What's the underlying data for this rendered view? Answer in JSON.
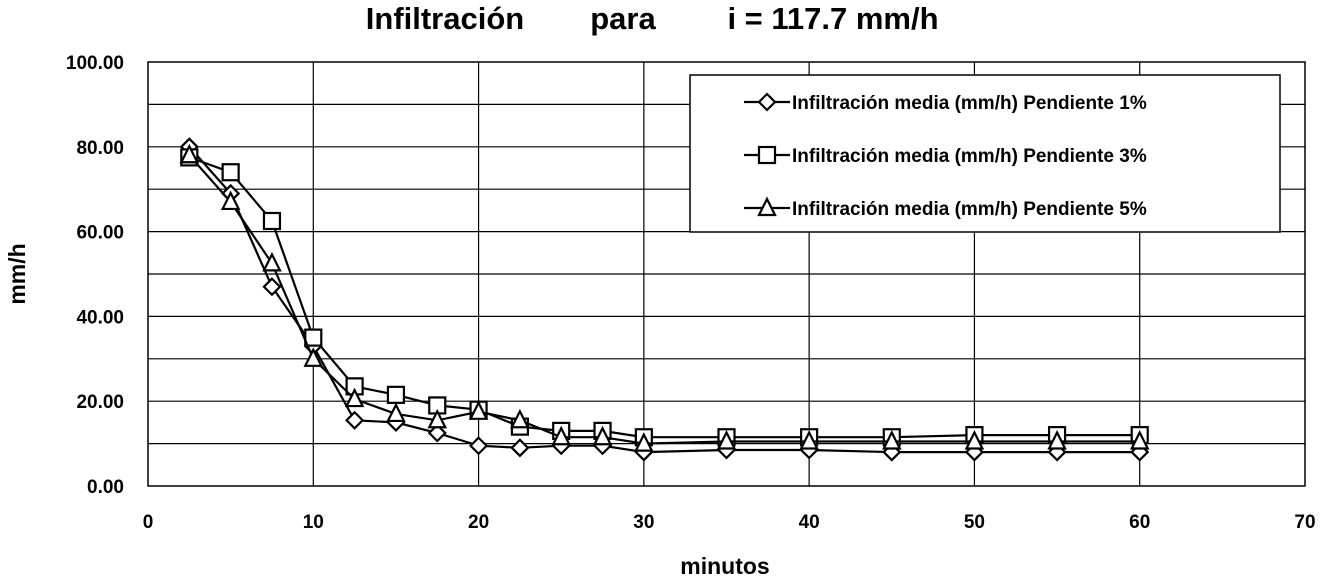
{
  "chart_data": {
    "type": "line",
    "title": "Infiltración para i = 117.7 mm/h",
    "title_parts": [
      "Infiltración",
      "para",
      "i = 117.7 mm/h"
    ],
    "xlabel": "minutos",
    "ylabel": "mm/h",
    "xlim": [
      0,
      70
    ],
    "ylim": [
      0,
      100
    ],
    "x_ticks": [
      0,
      10,
      20,
      30,
      40,
      50,
      60,
      70
    ],
    "x_tick_labels": [
      "0",
      "10",
      "20",
      "30",
      "40",
      "50",
      "60",
      "70"
    ],
    "y_ticks": [
      0,
      20,
      40,
      60,
      80,
      100
    ],
    "y_tick_labels": [
      "0.00",
      "20.00",
      "40.00",
      "60.00",
      "80.00",
      "100.00"
    ],
    "grid": true,
    "legend_position": "top-right",
    "series": [
      {
        "name": "Infiltración media (mm/h) Pendiente 1%",
        "marker": "diamond",
        "x": [
          2.5,
          5,
          7.5,
          10,
          12.5,
          15,
          17.5,
          20,
          22.5,
          25,
          27.5,
          30,
          35,
          40,
          45,
          50,
          55,
          60
        ],
        "y": [
          80,
          69,
          47,
          33,
          15.5,
          15,
          12.5,
          9.5,
          9,
          9.5,
          9.5,
          8,
          8.5,
          8.5,
          8,
          8,
          8,
          8
        ]
      },
      {
        "name": "Infiltración media (mm/h) Pendiente 3%",
        "marker": "square",
        "x": [
          2.5,
          5,
          7.5,
          10,
          12.5,
          15,
          17.5,
          20,
          22.5,
          25,
          27.5,
          30,
          35,
          40,
          45,
          50,
          55,
          60
        ],
        "y": [
          77.5,
          74,
          62.5,
          35,
          23.5,
          21.5,
          19,
          18,
          14,
          13,
          13,
          11.5,
          11.5,
          11.5,
          11.5,
          12,
          12,
          12
        ]
      },
      {
        "name": "Infiltración media (mm/h) Pendiente 5%",
        "marker": "triangle",
        "x": [
          2.5,
          5,
          7.5,
          10,
          12.5,
          15,
          17.5,
          20,
          22.5,
          25,
          27.5,
          30,
          35,
          40,
          45,
          50,
          55,
          60
        ],
        "y": [
          78,
          67,
          52.5,
          30,
          20.5,
          17,
          15.5,
          17.5,
          15.5,
          11.5,
          11.5,
          10,
          10.5,
          10.5,
          10.5,
          10.5,
          10.5,
          10.5
        ]
      }
    ]
  }
}
